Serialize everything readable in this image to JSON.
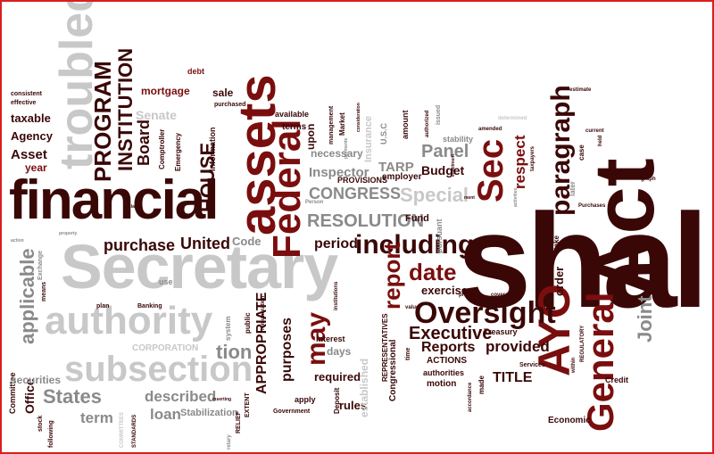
{
  "cloud": {
    "words": [
      {
        "text": "shall",
        "tone": "dark",
        "weight": 1.0
      },
      {
        "text": "Act",
        "tone": "dark",
        "weight": 0.8
      },
      {
        "text": "Secretary",
        "tone": "light",
        "weight": 0.85
      },
      {
        "text": "financial",
        "tone": "dark",
        "weight": 0.72
      },
      {
        "text": "assets",
        "tone": "red",
        "weight": 0.62
      },
      {
        "text": "troubled",
        "tone": "light",
        "weight": 0.6
      },
      {
        "text": "authority",
        "tone": "light",
        "weight": 0.5
      },
      {
        "text": "Federal",
        "tone": "red",
        "weight": 0.5
      },
      {
        "text": "Sec",
        "tone": "red",
        "weight": 0.45
      },
      {
        "text": "AYO",
        "tone": "red",
        "weight": 0.46
      },
      {
        "text": "General",
        "tone": "red",
        "weight": 0.45
      },
      {
        "text": "subsection",
        "tone": "light",
        "weight": 0.45
      },
      {
        "text": "Oversight",
        "tone": "dark",
        "weight": 0.4
      },
      {
        "text": "paragraph",
        "tone": "dark",
        "weight": 0.38
      },
      {
        "text": "including",
        "tone": "dark",
        "weight": 0.36
      },
      {
        "text": "may",
        "tone": "red",
        "weight": 0.36
      },
      {
        "text": "date",
        "tone": "red",
        "weight": 0.3
      },
      {
        "text": "report",
        "tone": "red",
        "weight": 0.3
      },
      {
        "text": "PROGRAM",
        "tone": "dark",
        "weight": 0.3
      },
      {
        "text": "INSTITUTION",
        "tone": "dark",
        "weight": 0.3
      },
      {
        "text": "HOUSE",
        "tone": "dark",
        "weight": 0.28
      },
      {
        "text": "RESOLUTION",
        "tone": "gray",
        "weight": 0.3
      },
      {
        "text": "CONGRESS",
        "tone": "gray",
        "weight": 0.28
      },
      {
        "text": "Special",
        "tone": "light",
        "weight": 0.28
      },
      {
        "text": "Panel",
        "tone": "gray",
        "weight": 0.26
      },
      {
        "text": "Executive",
        "tone": "dark",
        "weight": 0.26
      },
      {
        "text": "Reports",
        "tone": "dark",
        "weight": 0.24
      },
      {
        "text": "provided",
        "tone": "dark",
        "weight": 0.24
      },
      {
        "text": "Joint",
        "tone": "gray",
        "weight": 0.26
      },
      {
        "text": "States",
        "tone": "gray",
        "weight": 0.26
      },
      {
        "text": "applicable",
        "tone": "gray",
        "weight": 0.26
      },
      {
        "text": "purchase",
        "tone": "dark",
        "weight": 0.24
      },
      {
        "text": "United",
        "tone": "dark",
        "weight": 0.24
      },
      {
        "text": "period",
        "tone": "dark",
        "weight": 0.22
      },
      {
        "text": "purposes",
        "tone": "dark",
        "weight": 0.22
      },
      {
        "text": "APPROPRIATE",
        "tone": "dark",
        "weight": 0.22
      },
      {
        "text": "Board",
        "tone": "dark",
        "weight": 0.22
      },
      {
        "text": "tion",
        "tone": "gray",
        "weight": 0.24
      },
      {
        "text": "term",
        "tone": "gray",
        "weight": 0.22
      },
      {
        "text": "described",
        "tone": "gray",
        "weight": 0.22
      },
      {
        "text": "loan",
        "tone": "gray",
        "weight": 0.22
      },
      {
        "text": "TITLE",
        "tone": "dark",
        "weight": 0.2
      },
      {
        "text": "Inspector",
        "tone": "gray",
        "weight": 0.2
      },
      {
        "text": "TARP",
        "tone": "gray",
        "weight": 0.2
      },
      {
        "text": "Budget",
        "tone": "dark",
        "weight": 0.18
      },
      {
        "text": "respect",
        "tone": "red",
        "weight": 0.2
      },
      {
        "text": "exercise",
        "tone": "dark",
        "weight": 0.16
      },
      {
        "text": "order",
        "tone": "dark",
        "weight": 0.16
      },
      {
        "text": "Code",
        "tone": "gray",
        "weight": 0.16
      },
      {
        "text": "Asset",
        "tone": "dark",
        "weight": 0.18
      },
      {
        "text": "Agency",
        "tone": "dark",
        "weight": 0.16
      },
      {
        "text": "taxable",
        "tone": "dark",
        "weight": 0.15
      },
      {
        "text": "year",
        "tone": "red",
        "weight": 0.15
      },
      {
        "text": "mortgage",
        "tone": "red",
        "weight": 0.14
      },
      {
        "text": "sale",
        "tone": "dark",
        "weight": 0.15
      },
      {
        "text": "Senate",
        "tone": "light",
        "weight": 0.16
      },
      {
        "text": "Office",
        "tone": "dark",
        "weight": 0.16
      },
      {
        "text": "Committee",
        "tone": "dark",
        "weight": 0.1
      },
      {
        "text": "securities",
        "tone": "gray",
        "weight": 0.14
      },
      {
        "text": "required",
        "tone": "dark",
        "weight": 0.15
      },
      {
        "text": "days",
        "tone": "gray",
        "weight": 0.14
      },
      {
        "text": "rules",
        "tone": "dark",
        "weight": 0.15
      },
      {
        "text": "Stabilization",
        "tone": "gray",
        "weight": 0.13
      },
      {
        "text": "CORPORATION",
        "tone": "light",
        "weight": 0.12
      },
      {
        "text": "Economic",
        "tone": "dark",
        "weight": 0.12
      },
      {
        "text": "Credit",
        "tone": "dark",
        "weight": 0.1
      },
      {
        "text": "ACTIONS",
        "tone": "dark",
        "weight": 0.11
      },
      {
        "text": "authorities",
        "tone": "dark",
        "weight": 0.1
      },
      {
        "text": "motion",
        "tone": "dark",
        "weight": 0.11
      },
      {
        "text": "Services",
        "tone": "dark",
        "weight": 0.08
      },
      {
        "text": "Treasury",
        "tone": "dark",
        "weight": 0.1
      },
      {
        "text": "interest",
        "tone": "dark",
        "weight": 0.1
      },
      {
        "text": "Deposit",
        "tone": "dark",
        "weight": 0.09
      },
      {
        "text": "Government",
        "tone": "dark",
        "weight": 0.08
      },
      {
        "text": "apply",
        "tone": "dark",
        "weight": 0.1
      },
      {
        "text": "established",
        "tone": "light",
        "weight": 0.14
      },
      {
        "text": "REPRESENTATIVES",
        "tone": "dark",
        "weight": 0.09
      },
      {
        "text": "Congressional",
        "tone": "dark",
        "weight": 0.11
      },
      {
        "text": "Fund",
        "tone": "dark",
        "weight": 0.12
      },
      {
        "text": "employer",
        "tone": "dark",
        "weight": 0.12
      },
      {
        "text": "PROVISIONS",
        "tone": "dark",
        "weight": 0.11
      },
      {
        "text": "Insurance",
        "tone": "light",
        "weight": 0.13
      },
      {
        "text": "amount",
        "tone": "dark",
        "weight": 0.1
      },
      {
        "text": "stability",
        "tone": "gray",
        "weight": 0.1
      },
      {
        "text": "available",
        "tone": "dark",
        "weight": 0.1
      },
      {
        "text": "terms",
        "tone": "dark",
        "weight": 0.11
      },
      {
        "text": "upon",
        "tone": "dark",
        "weight": 0.14
      },
      {
        "text": "necessary",
        "tone": "gray",
        "weight": 0.14
      },
      {
        "text": "Market",
        "tone": "dark",
        "weight": 0.09
      },
      {
        "text": "management",
        "tone": "dark",
        "weight": 0.08
      },
      {
        "text": "debt",
        "tone": "red",
        "weight": 0.11
      },
      {
        "text": "purchased",
        "tone": "dark",
        "weight": 0.08
      },
      {
        "text": "Information",
        "tone": "dark",
        "weight": 0.1
      },
      {
        "text": "Emergency",
        "tone": "dark",
        "weight": 0.09
      },
      {
        "text": "Comptroller",
        "tone": "dark",
        "weight": 0.09
      },
      {
        "text": "consistent",
        "tone": "dark",
        "weight": 0.07
      },
      {
        "text": "effective",
        "tone": "dark",
        "weight": 0.07
      },
      {
        "text": "Banking",
        "tone": "dark",
        "weight": 0.08
      },
      {
        "text": "plan",
        "tone": "dark",
        "weight": 0.08
      },
      {
        "text": "use",
        "tone": "gray",
        "weight": 0.1
      },
      {
        "text": "public",
        "tone": "dark",
        "weight": 0.09
      },
      {
        "text": "system",
        "tone": "gray",
        "weight": 0.08
      },
      {
        "text": "RELIEF",
        "tone": "dark",
        "weight": 0.08
      },
      {
        "text": "EXTENT",
        "tone": "dark",
        "weight": 0.08
      },
      {
        "text": "stock",
        "tone": "dark",
        "weight": 0.08
      },
      {
        "text": "following",
        "tone": "dark",
        "weight": 0.08
      },
      {
        "text": "means",
        "tone": "dark",
        "weight": 0.08
      },
      {
        "text": "Exchange",
        "tone": "gray",
        "weight": 0.08
      },
      {
        "text": "STANDARDS",
        "tone": "dark",
        "weight": 0.06
      },
      {
        "text": "COMMITTEES",
        "tone": "light",
        "weight": 0.06
      },
      {
        "text": "estimate",
        "tone": "dark",
        "weight": 0.06
      },
      {
        "text": "determined",
        "tone": "light",
        "weight": 0.07
      },
      {
        "text": "taxpayers",
        "tone": "dark",
        "weight": 0.07
      },
      {
        "text": "current",
        "tone": "dark",
        "weight": 0.07
      },
      {
        "text": "held",
        "tone": "dark",
        "weight": 0.06
      },
      {
        "text": "case",
        "tone": "dark",
        "weight": 0.09
      },
      {
        "text": "later",
        "tone": "gray",
        "weight": 0.08
      },
      {
        "text": "Purchases",
        "tone": "dark",
        "weight": 0.07
      },
      {
        "text": "take",
        "tone": "dark",
        "weight": 0.08
      },
      {
        "text": "covered",
        "tone": "dark",
        "weight": 0.07
      },
      {
        "text": "provide",
        "tone": "dark",
        "weight": 0.07
      },
      {
        "text": "accordance",
        "tone": "dark",
        "weight": 0.06
      },
      {
        "text": "made",
        "tone": "dark",
        "weight": 0.08
      },
      {
        "text": "within",
        "tone": "dark",
        "weight": 0.06
      },
      {
        "text": "REGULATORY",
        "tone": "dark",
        "weight": 0.06
      },
      {
        "text": "pursuant",
        "tone": "gray",
        "weight": 0.1
      },
      {
        "text": "U.S.C",
        "tone": "gray",
        "weight": 0.1
      },
      {
        "text": "issued",
        "tone": "gray",
        "weight": 0.07
      },
      {
        "text": "authorized",
        "tone": "dark",
        "weight": 0.07
      },
      {
        "text": "amended",
        "tone": "dark",
        "weight": 0.06
      },
      {
        "text": "enactment",
        "tone": "dark",
        "weight": 0.05
      },
      {
        "text": "ment",
        "tone": "dark",
        "weight": 0.05
      },
      {
        "text": "activities",
        "tone": "gray",
        "weight": 0.05
      },
      {
        "text": "graph",
        "tone": "dark",
        "weight": 0.05
      },
      {
        "text": "institutions",
        "tone": "dark",
        "weight": 0.06
      },
      {
        "text": "remuneration",
        "tone": "dark",
        "weight": 0.06
      },
      {
        "text": "value",
        "tone": "dark",
        "weight": 0.06
      },
      {
        "text": "time",
        "tone": "dark",
        "weight": 0.07
      },
      {
        "text": "Person",
        "tone": "gray",
        "weight": 0.06
      },
      {
        "text": "clause",
        "tone": "dark",
        "weight": 0.05
      },
      {
        "text": "action",
        "tone": "gray",
        "weight": 0.05
      },
      {
        "text": "property",
        "tone": "gray",
        "weight": 0.05
      },
      {
        "text": "inserting",
        "tone": "dark",
        "weight": 0.05
      },
      {
        "text": "retary",
        "tone": "gray",
        "weight": 0.05
      },
      {
        "text": "payments",
        "tone": "gray",
        "weight": 0.05
      },
      {
        "text": "consideration",
        "tone": "dark",
        "weight": 0.05
      }
    ]
  }
}
